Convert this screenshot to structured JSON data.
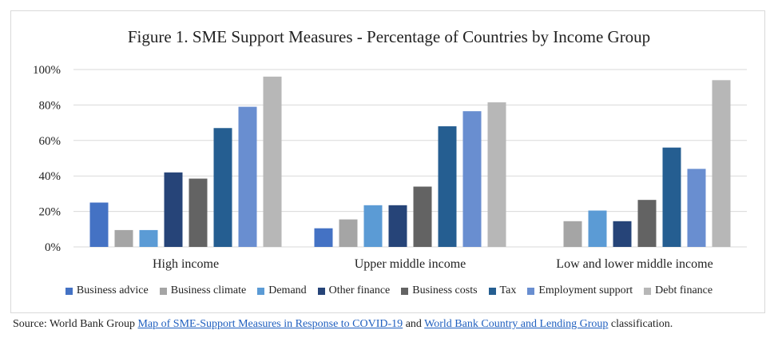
{
  "chart_data": {
    "type": "bar",
    "title": "Figure 1. SME Support Measures - Percentage of Countries by Income Group",
    "categories": [
      "High income",
      "Upper middle income",
      "Low and lower middle income"
    ],
    "ylim": [
      0,
      100
    ],
    "yticks": [
      "0%",
      "20%",
      "40%",
      "60%",
      "80%",
      "100%"
    ],
    "grid": true,
    "legend_position": "bottom",
    "series": [
      {
        "name": "Business advice",
        "color": "#4472c4",
        "values": [
          25,
          10.5,
          0
        ]
      },
      {
        "name": "Business climate",
        "color": "#a5a5a5",
        "values": [
          9.5,
          15.5,
          14.5
        ]
      },
      {
        "name": "Demand",
        "color": "#5b9bd5",
        "values": [
          9.5,
          23.5,
          20.5
        ]
      },
      {
        "name": "Other finance",
        "color": "#264478",
        "values": [
          42,
          23.5,
          14.5
        ]
      },
      {
        "name": "Business costs",
        "color": "#636363",
        "values": [
          38.5,
          34,
          26.5
        ]
      },
      {
        "name": "Tax",
        "color": "#255e91",
        "values": [
          67,
          68,
          56
        ]
      },
      {
        "name": "Employment support",
        "color": "#698ed0",
        "values": [
          79,
          76.5,
          44
        ]
      },
      {
        "name": "Debt finance",
        "color": "#b7b7b7",
        "values": [
          96,
          81.5,
          94
        ]
      }
    ]
  },
  "source": {
    "prefix": "Source: World Bank Group ",
    "link1": "Map of SME-Support Measures in Response to COVID-19",
    "middle": " and ",
    "link2": "World Bank Country and Lending Group",
    "suffix": " classification."
  }
}
